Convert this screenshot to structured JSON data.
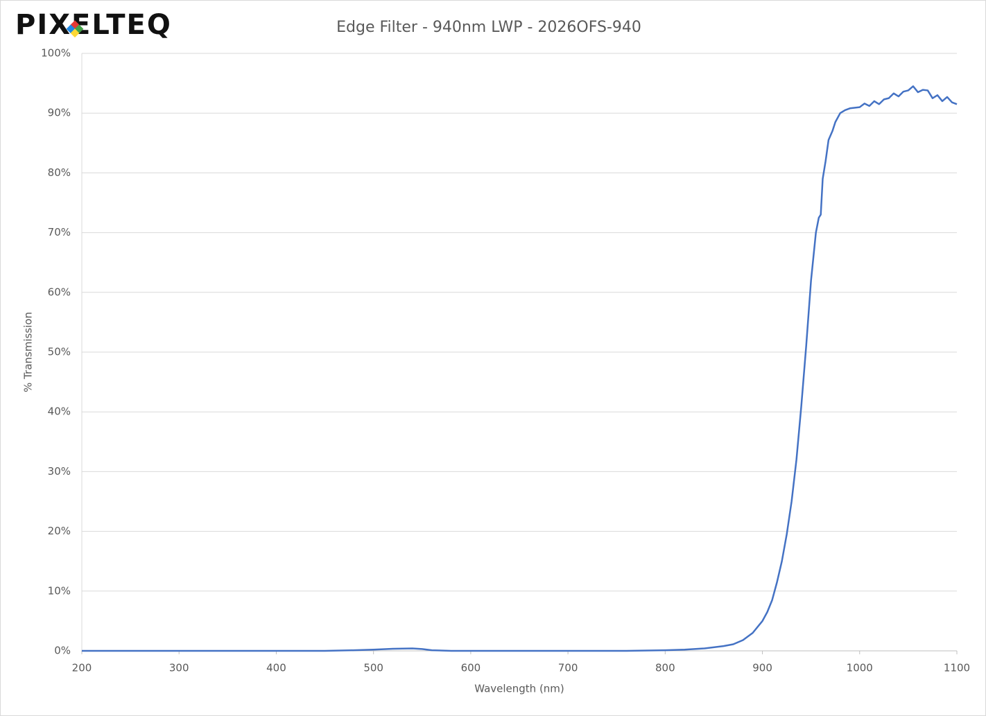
{
  "logo": "PIXELTEQ",
  "chart_data": {
    "type": "line",
    "title": "Edge Filter - 940nm LWP - 2026OFS-940",
    "x_label": "Wavelength (nm)",
    "y_label": "% Transmission",
    "xlim": [
      200,
      1100
    ],
    "xticks": [
      200,
      300,
      400,
      500,
      600,
      700,
      800,
      900,
      1000,
      1100
    ],
    "ylim": [
      0,
      100
    ],
    "yticks": [
      {
        "value": 0,
        "label": "0%"
      },
      {
        "value": 10,
        "label": "10%"
      },
      {
        "value": 20,
        "label": "20%"
      },
      {
        "value": 30,
        "label": "30%"
      },
      {
        "value": 40,
        "label": "40%"
      },
      {
        "value": 50,
        "label": "50%"
      },
      {
        "value": 60,
        "label": "60%"
      },
      {
        "value": 70,
        "label": "70%"
      },
      {
        "value": 80,
        "label": "80%"
      },
      {
        "value": 90,
        "label": "90%"
      },
      {
        "value": 100,
        "label": "100%"
      }
    ],
    "grid": true,
    "x": [
      200,
      400,
      450,
      480,
      500,
      520,
      540,
      550,
      560,
      580,
      700,
      760,
      800,
      820,
      840,
      860,
      870,
      880,
      890,
      900,
      905,
      910,
      915,
      920,
      925,
      930,
      935,
      940,
      945,
      950,
      955,
      958,
      960,
      962,
      965,
      968,
      972,
      975,
      980,
      985,
      990,
      1000,
      1005,
      1010,
      1015,
      1020,
      1025,
      1030,
      1035,
      1040,
      1045,
      1050,
      1055,
      1060,
      1065,
      1070,
      1075,
      1080,
      1085,
      1090,
      1095,
      1100
    ],
    "series": [
      {
        "name": "Transmission",
        "color": "#4472c4",
        "values": [
          0,
          0,
          0,
          0.1,
          0.2,
          0.35,
          0.4,
          0.3,
          0.1,
          0,
          0,
          0,
          0.1,
          0.2,
          0.4,
          0.8,
          1.1,
          1.8,
          3,
          5,
          6.5,
          8.5,
          11.5,
          15,
          19.5,
          25,
          32,
          41,
          51,
          62,
          70,
          72.5,
          73,
          79,
          82,
          85.5,
          87,
          88.5,
          90,
          90.5,
          90.8,
          91,
          91.6,
          91.2,
          92,
          91.5,
          92.3,
          92.5,
          93.3,
          92.8,
          93.6,
          93.8,
          94.5,
          93.5,
          93.9,
          93.8,
          92.5,
          93,
          92,
          92.7,
          91.8,
          91.5
        ]
      }
    ]
  }
}
